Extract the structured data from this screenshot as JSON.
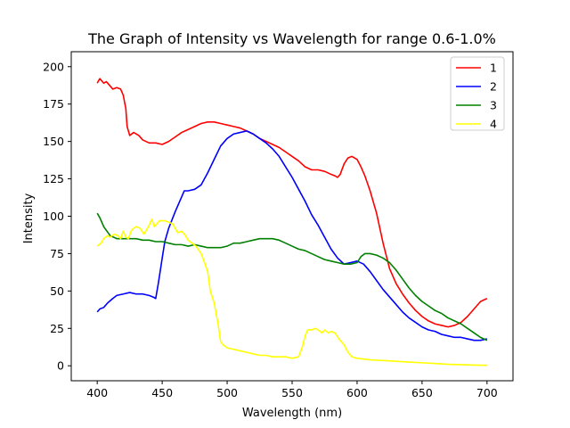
{
  "chart_data": {
    "type": "line",
    "title": "The Graph of Intensity vs Wavelength  for range 0.6-1.0%",
    "xlabel": "Wavelength (nm)",
    "ylabel": "Intensity",
    "xlim": [
      380,
      720
    ],
    "ylim": [
      -10,
      210
    ],
    "xticks": [
      400,
      450,
      500,
      550,
      600,
      650,
      700
    ],
    "yticks": [
      0,
      25,
      50,
      75,
      100,
      125,
      150,
      175,
      200
    ],
    "grid": false,
    "legend_position": "top-right",
    "series": [
      {
        "name": "1",
        "color": "#ff0000",
        "x": [
          400,
          402,
          405,
          407,
          410,
          412,
          415,
          418,
          420,
          422,
          423,
          425,
          428,
          432,
          435,
          440,
          445,
          450,
          455,
          460,
          465,
          470,
          475,
          480,
          485,
          490,
          495,
          500,
          505,
          510,
          515,
          520,
          525,
          530,
          535,
          540,
          545,
          550,
          555,
          560,
          565,
          570,
          575,
          580,
          583,
          585,
          587,
          590,
          593,
          596,
          600,
          603,
          606,
          610,
          615,
          620,
          625,
          630,
          635,
          640,
          645,
          650,
          655,
          660,
          665,
          670,
          675,
          680,
          685,
          690,
          695,
          700
        ],
        "y": [
          189,
          192,
          189,
          190,
          187,
          185,
          186,
          185,
          181,
          172,
          160,
          154,
          156,
          154,
          151,
          149,
          149,
          148,
          150,
          153,
          156,
          158,
          160,
          162,
          163,
          163,
          162,
          161,
          160,
          159,
          157,
          155,
          152,
          150,
          148,
          146,
          143,
          140,
          137,
          133,
          131,
          131,
          130,
          128,
          127,
          126,
          128,
          135,
          139,
          140,
          138,
          133,
          127,
          117,
          102,
          82,
          65,
          55,
          48,
          42,
          37,
          33,
          30,
          28,
          27,
          26,
          27,
          29,
          33,
          38,
          43,
          45
        ]
      },
      {
        "name": "2",
        "color": "#0000ff",
        "x": [
          400,
          402,
          405,
          408,
          412,
          415,
          420,
          425,
          430,
          435,
          440,
          443,
          445,
          447,
          450,
          452,
          455,
          460,
          465,
          467,
          470,
          475,
          480,
          485,
          490,
          495,
          500,
          505,
          510,
          515,
          520,
          525,
          530,
          535,
          540,
          545,
          550,
          555,
          560,
          565,
          570,
          575,
          580,
          585,
          590,
          595,
          600,
          605,
          610,
          615,
          620,
          625,
          630,
          635,
          640,
          645,
          650,
          655,
          660,
          665,
          670,
          675,
          680,
          685,
          690,
          695,
          700
        ],
        "y": [
          36,
          38,
          39,
          42,
          45,
          47,
          48,
          49,
          48,
          48,
          47,
          46,
          45,
          55,
          72,
          83,
          92,
          103,
          113,
          117,
          117,
          118,
          121,
          129,
          138,
          147,
          152,
          155,
          156,
          157,
          155,
          152,
          149,
          145,
          140,
          133,
          126,
          118,
          110,
          101,
          94,
          86,
          78,
          72,
          68,
          69,
          70,
          68,
          63,
          57,
          51,
          46,
          41,
          36,
          32,
          29,
          26,
          24,
          23,
          21,
          20,
          19,
          19,
          18,
          17,
          17,
          18
        ]
      },
      {
        "name": "3",
        "color": "#008000",
        "x": [
          400,
          402,
          405,
          410,
          415,
          420,
          425,
          430,
          435,
          440,
          445,
          450,
          455,
          460,
          465,
          470,
          475,
          480,
          485,
          490,
          495,
          500,
          505,
          510,
          515,
          520,
          525,
          530,
          535,
          540,
          545,
          550,
          555,
          560,
          565,
          570,
          575,
          580,
          585,
          590,
          595,
          600,
          603,
          606,
          610,
          615,
          620,
          625,
          630,
          635,
          640,
          645,
          650,
          655,
          660,
          665,
          670,
          675,
          680,
          685,
          690,
          695,
          700
        ],
        "y": [
          102,
          99,
          93,
          87,
          85,
          85,
          85,
          85,
          84,
          84,
          83,
          83,
          82,
          81,
          81,
          80,
          81,
          80,
          79,
          79,
          79,
          80,
          82,
          82,
          83,
          84,
          85,
          85,
          85,
          84,
          82,
          80,
          78,
          77,
          75,
          73,
          71,
          70,
          69,
          68,
          68,
          69,
          73,
          75,
          75,
          74,
          72,
          69,
          64,
          58,
          52,
          47,
          43,
          40,
          37,
          35,
          32,
          30,
          28,
          25,
          22,
          19,
          17
        ]
      },
      {
        "name": "4",
        "color": "#ffff00",
        "x": [
          400,
          403,
          405,
          408,
          410,
          413,
          416,
          418,
          420,
          422,
          424,
          426,
          428,
          430,
          433,
          436,
          440,
          442,
          444,
          446,
          448,
          450,
          452,
          455,
          458,
          460,
          462,
          465,
          468,
          470,
          473,
          476,
          480,
          483,
          485,
          487,
          490,
          493,
          495,
          497,
          500,
          505,
          510,
          515,
          520,
          525,
          530,
          535,
          540,
          545,
          550,
          555,
          558,
          560,
          562,
          565,
          568,
          570,
          573,
          575,
          578,
          580,
          583,
          586,
          590,
          593,
          596,
          600,
          610,
          620,
          630,
          640,
          650,
          660,
          670,
          680,
          690,
          700
        ],
        "y": [
          80,
          82,
          85,
          87,
          86,
          88,
          87,
          85,
          90,
          86,
          85,
          90,
          92,
          93,
          92,
          88,
          94,
          98,
          93,
          95,
          97,
          97,
          97,
          96,
          95,
          92,
          89,
          90,
          87,
          84,
          82,
          80,
          75,
          68,
          63,
          50,
          42,
          28,
          16,
          14,
          12,
          11,
          10,
          9,
          8,
          7,
          7,
          6,
          6,
          6,
          5,
          6,
          13,
          20,
          24,
          24,
          25,
          24,
          22,
          24,
          22,
          23,
          22,
          18,
          14,
          9,
          6,
          5,
          4,
          3.5,
          3,
          2.5,
          2,
          1.5,
          1,
          0.8,
          0.5,
          0.3
        ]
      }
    ]
  }
}
